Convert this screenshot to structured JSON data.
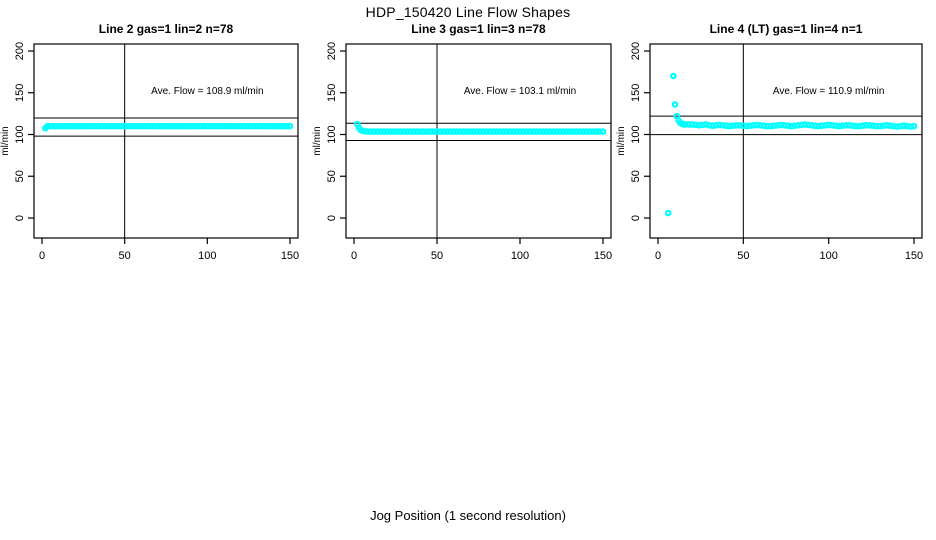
{
  "page": {
    "title": "HDP_150420  Line Flow Shapes",
    "xlabel": "Jog Position (1 second resolution)",
    "background": "#ffffff",
    "point_color": "#00ffff",
    "axis_color": "#000000"
  },
  "chart_data": [
    {
      "type": "scatter",
      "title": "Line 2 gas=1 lin=2 n=78",
      "annotation": "Ave. Flow =  108.9  ml/min",
      "ave_flow": 108.9,
      "ylabel": "ml/min",
      "x_ticks": [
        0,
        50,
        100,
        150
      ],
      "y_ticks": [
        0,
        50,
        100,
        150,
        200
      ],
      "xlim": [
        0,
        150
      ],
      "ylim": [
        0,
        200
      ],
      "ref_lines_y": [
        119.8,
        98.0
      ],
      "ref_line_x": 50,
      "point_color": "#00ffff",
      "points": [
        [
          2,
          107.5
        ],
        [
          3,
          109.5
        ],
        [
          4,
          110
        ],
        [
          6,
          110
        ],
        [
          8,
          110
        ],
        [
          10,
          110
        ],
        [
          12,
          110
        ],
        [
          14,
          110
        ],
        [
          16,
          110
        ],
        [
          18,
          110
        ],
        [
          20,
          110
        ],
        [
          22,
          110
        ],
        [
          24,
          110
        ],
        [
          26,
          110
        ],
        [
          28,
          110
        ],
        [
          30,
          110
        ],
        [
          32,
          110
        ],
        [
          34,
          110
        ],
        [
          36,
          110
        ],
        [
          38,
          110
        ],
        [
          40,
          110
        ],
        [
          42,
          110
        ],
        [
          44,
          110
        ],
        [
          46,
          110
        ],
        [
          48,
          110
        ],
        [
          50,
          110
        ],
        [
          52,
          110
        ],
        [
          54,
          110
        ],
        [
          56,
          110
        ],
        [
          58,
          110
        ],
        [
          60,
          110
        ],
        [
          62,
          110
        ],
        [
          64,
          110
        ],
        [
          66,
          110
        ],
        [
          68,
          110
        ],
        [
          70,
          110
        ],
        [
          72,
          110
        ],
        [
          74,
          110
        ],
        [
          76,
          110
        ],
        [
          78,
          110
        ],
        [
          80,
          110
        ],
        [
          82,
          110
        ],
        [
          84,
          110
        ],
        [
          86,
          110
        ],
        [
          88,
          110
        ],
        [
          90,
          110
        ],
        [
          92,
          110
        ],
        [
          94,
          110
        ],
        [
          96,
          110
        ],
        [
          98,
          110
        ],
        [
          100,
          110
        ],
        [
          102,
          110
        ],
        [
          104,
          110
        ],
        [
          106,
          110
        ],
        [
          108,
          110
        ],
        [
          110,
          110
        ],
        [
          112,
          110
        ],
        [
          114,
          110
        ],
        [
          116,
          110
        ],
        [
          118,
          110
        ],
        [
          120,
          110
        ],
        [
          122,
          110
        ],
        [
          124,
          110
        ],
        [
          126,
          110
        ],
        [
          128,
          110
        ],
        [
          130,
          110
        ],
        [
          132,
          110
        ],
        [
          134,
          110
        ],
        [
          136,
          110
        ],
        [
          138,
          110
        ],
        [
          140,
          110
        ],
        [
          142,
          110
        ],
        [
          144,
          110
        ],
        [
          146,
          110
        ],
        [
          148,
          110
        ],
        [
          150,
          110
        ]
      ]
    },
    {
      "type": "scatter",
      "title": "Line 3 gas=1 lin=3 n=78",
      "annotation": "Ave. Flow =  103.1  ml/min",
      "ave_flow": 103.1,
      "ylabel": "ml/min",
      "x_ticks": [
        0,
        50,
        100,
        150
      ],
      "y_ticks": [
        0,
        50,
        100,
        150,
        200
      ],
      "xlim": [
        0,
        150
      ],
      "ylim": [
        0,
        200
      ],
      "ref_lines_y": [
        113.4,
        92.8
      ],
      "ref_line_x": 50,
      "point_color": "#00ffff",
      "points": [
        [
          2,
          112.5
        ],
        [
          3,
          108
        ],
        [
          4,
          105.5
        ],
        [
          5,
          104.5
        ],
        [
          6,
          104
        ],
        [
          8,
          103.5
        ],
        [
          10,
          103.5
        ],
        [
          12,
          103.5
        ],
        [
          14,
          103.5
        ],
        [
          16,
          103.5
        ],
        [
          18,
          103.5
        ],
        [
          20,
          103.5
        ],
        [
          22,
          103.5
        ],
        [
          24,
          103.5
        ],
        [
          26,
          103.5
        ],
        [
          28,
          103.5
        ],
        [
          30,
          103.5
        ],
        [
          32,
          103.5
        ],
        [
          34,
          103.5
        ],
        [
          36,
          103.5
        ],
        [
          38,
          103.5
        ],
        [
          40,
          103.5
        ],
        [
          42,
          103.5
        ],
        [
          44,
          103.5
        ],
        [
          46,
          103.5
        ],
        [
          48,
          103.5
        ],
        [
          50,
          103.5
        ],
        [
          52,
          103.5
        ],
        [
          54,
          103.5
        ],
        [
          56,
          103.5
        ],
        [
          58,
          103.5
        ],
        [
          60,
          103.5
        ],
        [
          62,
          103.5
        ],
        [
          64,
          103.5
        ],
        [
          66,
          103.5
        ],
        [
          68,
          103.5
        ],
        [
          70,
          103.5
        ],
        [
          72,
          103.5
        ],
        [
          74,
          103.5
        ],
        [
          76,
          103.5
        ],
        [
          78,
          103.5
        ],
        [
          80,
          103.5
        ],
        [
          82,
          103.5
        ],
        [
          84,
          103.5
        ],
        [
          86,
          103.5
        ],
        [
          88,
          103.5
        ],
        [
          90,
          103.5
        ],
        [
          92,
          103.5
        ],
        [
          94,
          103.5
        ],
        [
          96,
          103.5
        ],
        [
          98,
          103.5
        ],
        [
          100,
          103.5
        ],
        [
          102,
          103.5
        ],
        [
          104,
          103.5
        ],
        [
          106,
          103.5
        ],
        [
          108,
          103.5
        ],
        [
          110,
          103.5
        ],
        [
          112,
          103.5
        ],
        [
          114,
          103.5
        ],
        [
          116,
          103.5
        ],
        [
          118,
          103.5
        ],
        [
          120,
          103.5
        ],
        [
          122,
          103.5
        ],
        [
          124,
          103.5
        ],
        [
          126,
          103.5
        ],
        [
          128,
          103.5
        ],
        [
          130,
          103.5
        ],
        [
          132,
          103.5
        ],
        [
          134,
          103.5
        ],
        [
          136,
          103.5
        ],
        [
          138,
          103.5
        ],
        [
          140,
          103.5
        ],
        [
          142,
          103.5
        ],
        [
          144,
          103.5
        ],
        [
          146,
          103.5
        ],
        [
          148,
          103.5
        ],
        [
          150,
          103.5
        ]
      ]
    },
    {
      "type": "scatter",
      "title": "Line 4 (LT) gas=1 lin=4 n=1",
      "annotation": "Ave. Flow =  110.9  ml/min",
      "ave_flow": 110.9,
      "ylabel": "ml/min",
      "x_ticks": [
        0,
        50,
        100,
        150
      ],
      "y_ticks": [
        0,
        50,
        100,
        150,
        200
      ],
      "xlim": [
        0,
        150
      ],
      "ylim": [
        0,
        200
      ],
      "ref_lines_y": [
        122.0,
        99.8
      ],
      "ref_line_x": 50,
      "point_color": "#00ffff",
      "points": [
        [
          6,
          6
        ],
        [
          9,
          170
        ],
        [
          10,
          136
        ],
        [
          11,
          122
        ],
        [
          12,
          117
        ],
        [
          13,
          114
        ],
        [
          14,
          113
        ],
        [
          15,
          112
        ],
        [
          16,
          112
        ],
        [
          18,
          112
        ],
        [
          20,
          112
        ],
        [
          22,
          111.5
        ],
        [
          24,
          111
        ],
        [
          26,
          111.5
        ],
        [
          28,
          112
        ],
        [
          30,
          111
        ],
        [
          32,
          110.5
        ],
        [
          34,
          111
        ],
        [
          36,
          111.5
        ],
        [
          38,
          111
        ],
        [
          40,
          110.5
        ],
        [
          42,
          110
        ],
        [
          44,
          110.5
        ],
        [
          46,
          111
        ],
        [
          48,
          111
        ],
        [
          50,
          110.5
        ],
        [
          52,
          110
        ],
        [
          54,
          110.5
        ],
        [
          56,
          111
        ],
        [
          58,
          111.5
        ],
        [
          60,
          111
        ],
        [
          62,
          110.5
        ],
        [
          64,
          110
        ],
        [
          66,
          110
        ],
        [
          68,
          110.5
        ],
        [
          70,
          111
        ],
        [
          72,
          111.5
        ],
        [
          74,
          111
        ],
        [
          76,
          110.5
        ],
        [
          78,
          110
        ],
        [
          80,
          110.5
        ],
        [
          82,
          111
        ],
        [
          84,
          111.5
        ],
        [
          86,
          112
        ],
        [
          88,
          111.5
        ],
        [
          90,
          111
        ],
        [
          92,
          110.5
        ],
        [
          94,
          110
        ],
        [
          96,
          110.5
        ],
        [
          98,
          111
        ],
        [
          100,
          111.5
        ],
        [
          102,
          111
        ],
        [
          104,
          110.5
        ],
        [
          106,
          110
        ],
        [
          108,
          110.5
        ],
        [
          110,
          111
        ],
        [
          112,
          111
        ],
        [
          114,
          110.5
        ],
        [
          116,
          110
        ],
        [
          118,
          110
        ],
        [
          120,
          110.5
        ],
        [
          122,
          111
        ],
        [
          124,
          111
        ],
        [
          126,
          110.5
        ],
        [
          128,
          110
        ],
        [
          130,
          110
        ],
        [
          132,
          110.5
        ],
        [
          134,
          111
        ],
        [
          136,
          110.5
        ],
        [
          138,
          110
        ],
        [
          140,
          109.5
        ],
        [
          142,
          110
        ],
        [
          144,
          110.5
        ],
        [
          146,
          110
        ],
        [
          148,
          109.5
        ],
        [
          150,
          110
        ]
      ]
    }
  ]
}
